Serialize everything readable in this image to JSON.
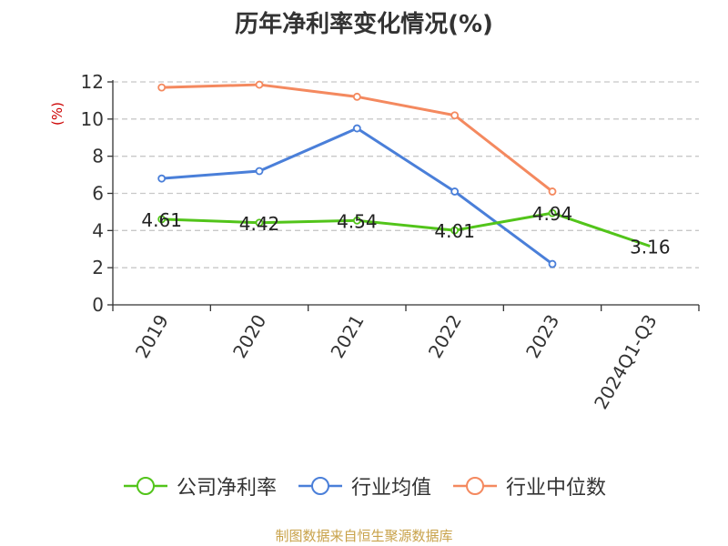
{
  "chart_data": {
    "type": "line",
    "title": "历年净利率变化情况(%)",
    "ylabel": "(%)",
    "ylim": [
      0,
      12
    ],
    "yticks": [
      0,
      2,
      4,
      6,
      8,
      10,
      12
    ],
    "grid": true,
    "legend_position": "bottom",
    "categories": [
      "2019",
      "2020",
      "2021",
      "2022",
      "2023",
      "2024Q1-Q3"
    ],
    "series": [
      {
        "name": "公司净利率",
        "color": "#52c41a",
        "values": [
          4.61,
          4.42,
          4.54,
          4.01,
          4.94,
          3.16
        ],
        "labels": [
          "4.61",
          "4.42",
          "4.54",
          "4.01",
          "4.94",
          "3.16"
        ]
      },
      {
        "name": "行业均值",
        "color": "#4a7fd9",
        "values": [
          6.8,
          7.2,
          9.5,
          6.1,
          2.2,
          null
        ]
      },
      {
        "name": "行业中位数",
        "color": "#f4895f",
        "values": [
          11.7,
          11.85,
          11.2,
          10.2,
          6.1,
          null
        ]
      }
    ]
  },
  "source_text": "制图数据来自恒生聚源数据库"
}
